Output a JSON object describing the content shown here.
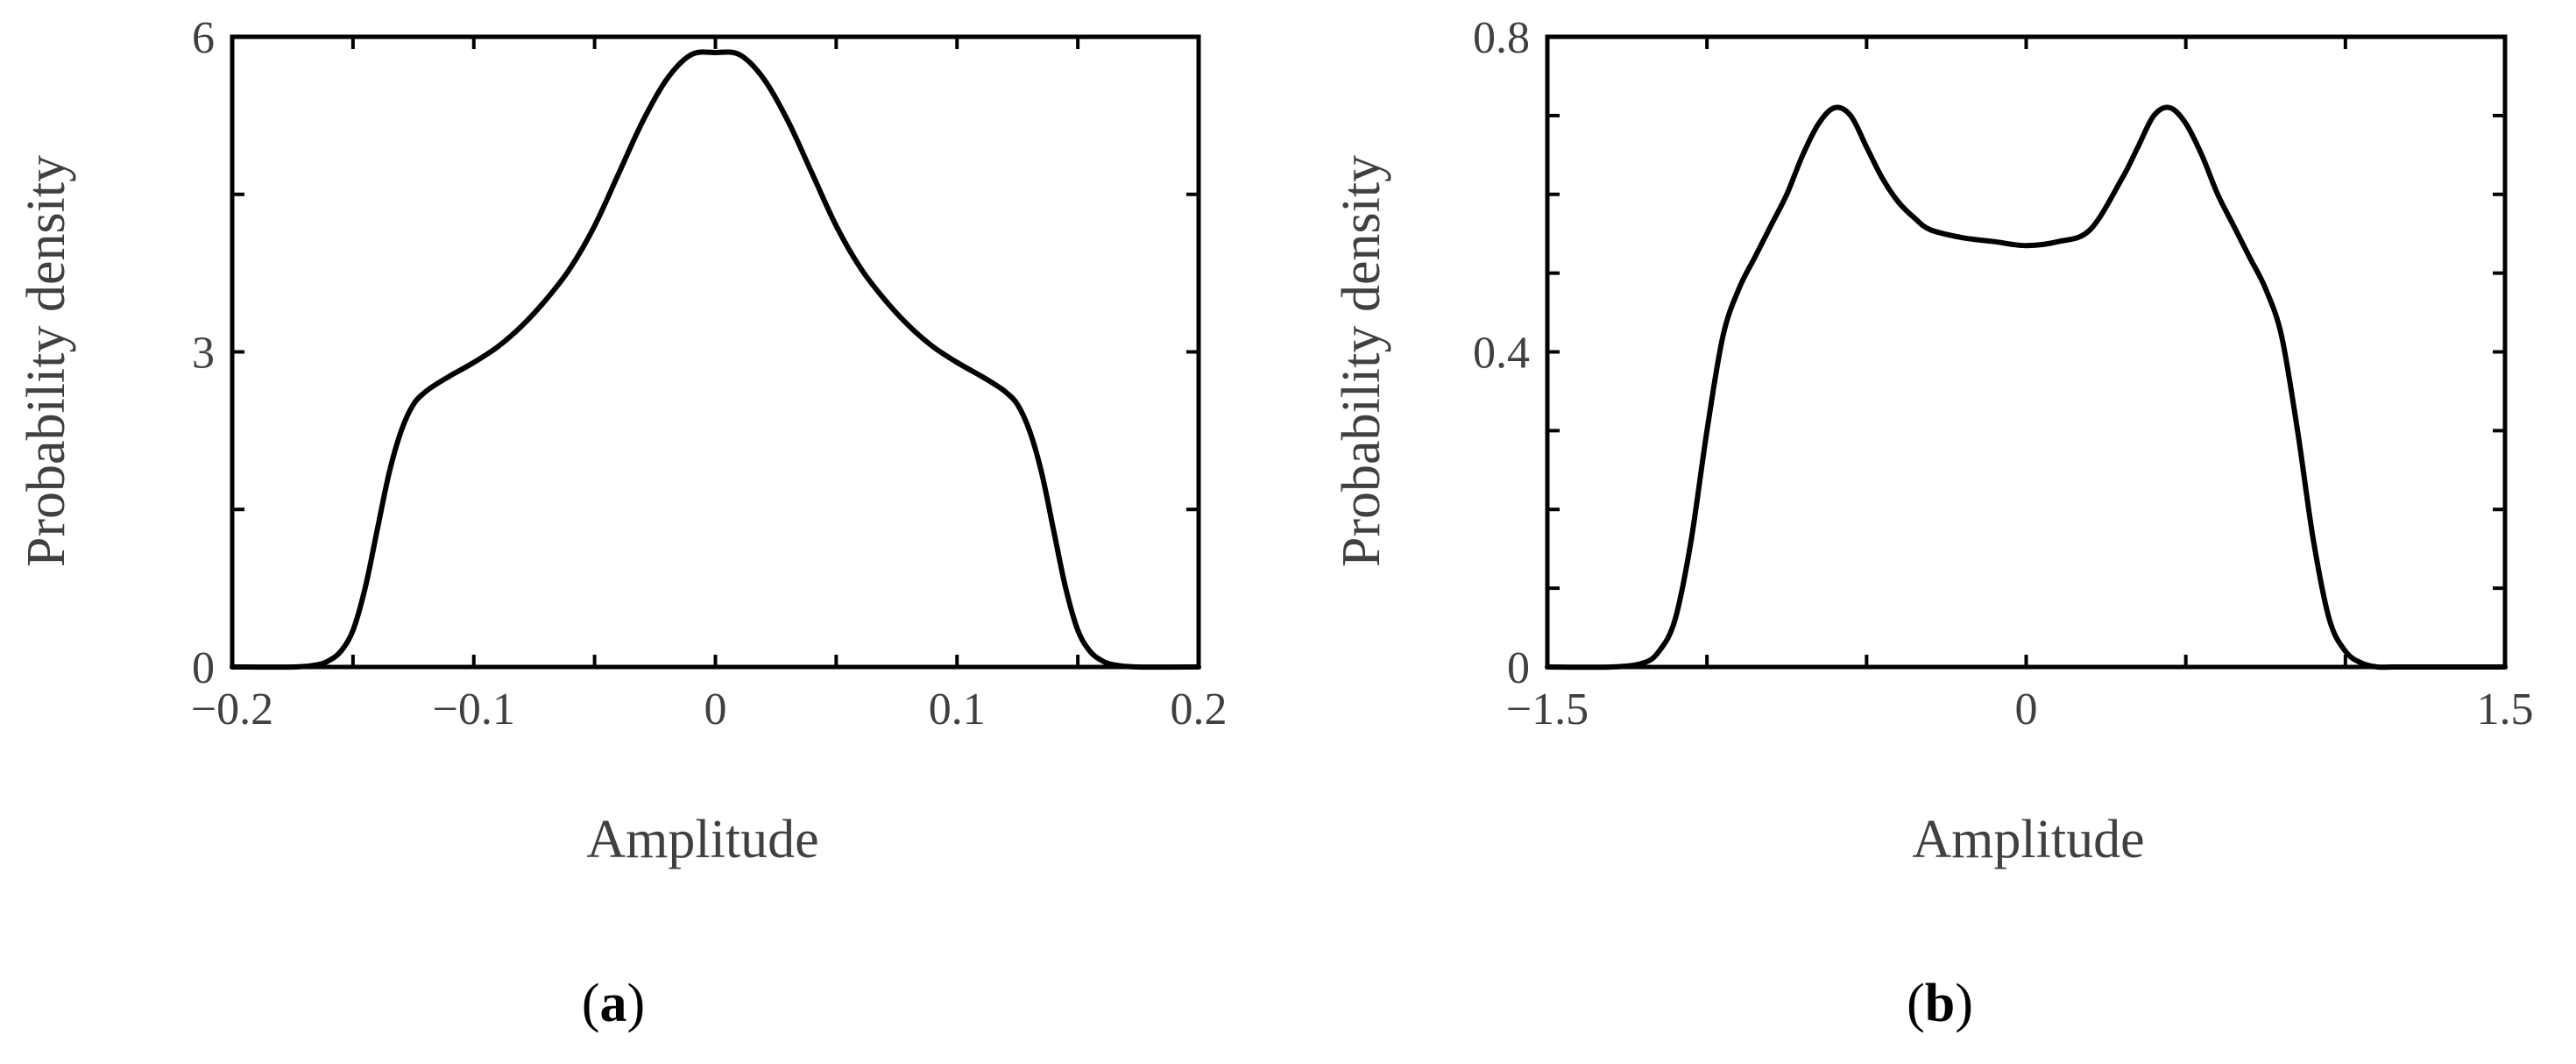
{
  "chart_data": [
    {
      "type": "line",
      "panel_label": {
        "open": "(",
        "letter": "a",
        "close": ")"
      },
      "xlabel": "Amplitude",
      "ylabel": "Probability density",
      "xlim": [
        -0.2,
        0.2
      ],
      "ylim": [
        0,
        6
      ],
      "xticks": [
        -0.2,
        -0.1,
        0,
        0.1,
        0.2
      ],
      "xtick_labels": [
        "−0.2",
        "−0.1",
        "0",
        "0.1",
        "0.2"
      ],
      "xminor": [
        -0.15,
        -0.05,
        0.05,
        0.15
      ],
      "yticks": [
        0,
        3,
        6
      ],
      "ytick_labels": [
        "0",
        "3",
        "6"
      ],
      "yminor": [
        1.5,
        4.5
      ],
      "grid": false,
      "series": [
        {
          "x": [
            -0.2,
            -0.175,
            -0.165,
            -0.16,
            -0.155,
            -0.15,
            -0.145,
            -0.14,
            -0.135,
            -0.13,
            -0.125,
            -0.12,
            -0.115,
            -0.11,
            -0.1,
            -0.09,
            -0.08,
            -0.07,
            -0.06,
            -0.05,
            -0.04,
            -0.03,
            -0.02,
            -0.01,
            0,
            0.01,
            0.02,
            0.03,
            0.04,
            0.05,
            0.06,
            0.07,
            0.08,
            0.09,
            0.1,
            0.11,
            0.115,
            0.12,
            0.125,
            0.13,
            0.135,
            0.14,
            0.145,
            0.15,
            0.155,
            0.16,
            0.165,
            0.175,
            0.2
          ],
          "y": [
            0,
            0,
            0.02,
            0.06,
            0.15,
            0.35,
            0.75,
            1.3,
            1.85,
            2.25,
            2.5,
            2.62,
            2.7,
            2.77,
            2.9,
            3.05,
            3.25,
            3.5,
            3.8,
            4.2,
            4.7,
            5.2,
            5.6,
            5.83,
            5.85,
            5.83,
            5.6,
            5.2,
            4.7,
            4.2,
            3.8,
            3.5,
            3.25,
            3.05,
            2.9,
            2.77,
            2.7,
            2.62,
            2.5,
            2.25,
            1.85,
            1.3,
            0.75,
            0.35,
            0.15,
            0.06,
            0.02,
            0,
            0
          ]
        }
      ]
    },
    {
      "type": "line",
      "panel_label": {
        "open": "(",
        "letter": "b",
        "close": ")"
      },
      "xlabel": "Amplitude",
      "ylabel": "Probability density",
      "xlim": [
        -1.5,
        1.5
      ],
      "ylim": [
        0,
        0.8
      ],
      "xticks": [
        -1.5,
        0,
        1.5
      ],
      "xtick_labels": [
        "−1.5",
        "0",
        "1.5"
      ],
      "xminor": [
        -1.0,
        -0.5,
        0.5,
        1.0
      ],
      "yticks": [
        0,
        0.4,
        0.8
      ],
      "ytick_labels": [
        "0",
        "0.4",
        "0.8"
      ],
      "yminor": [
        0.1,
        0.2,
        0.3,
        0.5,
        0.6,
        0.7
      ],
      "grid": false,
      "series": [
        {
          "x": [
            -1.5,
            -1.3,
            -1.2,
            -1.15,
            -1.1,
            -1.05,
            -1.0,
            -0.95,
            -0.9,
            -0.85,
            -0.8,
            -0.75,
            -0.7,
            -0.65,
            -0.6,
            -0.55,
            -0.5,
            -0.45,
            -0.4,
            -0.35,
            -0.3,
            -0.2,
            -0.1,
            0,
            0.1,
            0.2,
            0.3,
            0.35,
            0.4,
            0.45,
            0.5,
            0.55,
            0.6,
            0.65,
            0.7,
            0.75,
            0.8,
            0.85,
            0.9,
            0.95,
            1.0,
            1.05,
            1.1,
            1.15,
            1.2,
            1.3,
            1.5
          ],
          "y": [
            0,
            0,
            0.005,
            0.02,
            0.06,
            0.16,
            0.3,
            0.42,
            0.48,
            0.52,
            0.56,
            0.6,
            0.65,
            0.69,
            0.71,
            0.7,
            0.66,
            0.62,
            0.59,
            0.57,
            0.555,
            0.545,
            0.54,
            0.535,
            0.54,
            0.555,
            0.62,
            0.66,
            0.7,
            0.71,
            0.69,
            0.65,
            0.6,
            0.56,
            0.52,
            0.48,
            0.42,
            0.3,
            0.16,
            0.06,
            0.02,
            0.005,
            0,
            0,
            0,
            0,
            0
          ]
        }
      ]
    }
  ]
}
